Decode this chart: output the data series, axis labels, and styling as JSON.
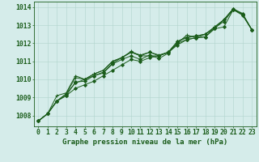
{
  "xlabel": "Graphe pression niveau de la mer (hPa)",
  "xlim": [
    -0.5,
    23.5
  ],
  "ylim": [
    1007.4,
    1014.3
  ],
  "yticks": [
    1008,
    1009,
    1010,
    1011,
    1012,
    1013,
    1014
  ],
  "xticks": [
    0,
    1,
    2,
    3,
    4,
    5,
    6,
    7,
    8,
    9,
    10,
    11,
    12,
    13,
    14,
    15,
    16,
    17,
    18,
    19,
    20,
    21,
    22,
    23
  ],
  "bg_color": "#d5ecea",
  "grid_color": "#b0d4cc",
  "line_color": "#1a5c1a",
  "lines": [
    {
      "y": [
        1007.7,
        1008.1,
        1008.8,
        1009.2,
        1009.8,
        1010.0,
        1010.2,
        1010.4,
        1010.9,
        1011.2,
        1011.5,
        1011.3,
        1011.5,
        1011.3,
        1011.5,
        1012.1,
        1012.3,
        1012.4,
        1012.5,
        1012.8,
        1013.3,
        1013.9,
        1013.65,
        1012.75
      ],
      "marker": "D",
      "markersize": 2.0,
      "lw": 0.7
    },
    {
      "y": [
        1007.7,
        1008.1,
        1008.8,
        1009.1,
        1009.5,
        1009.7,
        1009.9,
        1010.2,
        1010.5,
        1010.8,
        1011.1,
        1011.0,
        1011.2,
        1011.3,
        1011.5,
        1011.9,
        1012.2,
        1012.3,
        1012.35,
        1012.8,
        1012.9,
        1013.85,
        1013.6,
        1012.75
      ],
      "marker": "D",
      "markersize": 2.0,
      "lw": 0.7
    },
    {
      "y": [
        1007.7,
        1008.1,
        1009.1,
        1009.25,
        1010.2,
        1010.0,
        1010.3,
        1010.5,
        1011.0,
        1011.2,
        1011.55,
        1011.3,
        1011.3,
        1011.3,
        1011.5,
        1012.0,
        1012.45,
        1012.3,
        1012.5,
        1012.9,
        1013.3,
        1013.9,
        1013.6,
        1012.75
      ],
      "marker": "+",
      "markersize": 3.5,
      "lw": 0.7
    },
    {
      "y": [
        1007.7,
        1008.1,
        1008.8,
        1009.2,
        1010.1,
        1010.0,
        1010.3,
        1010.5,
        1011.0,
        1011.2,
        1011.5,
        1011.35,
        1011.5,
        1011.35,
        1011.5,
        1012.1,
        1012.35,
        1012.4,
        1012.5,
        1012.9,
        1013.3,
        1013.9,
        1013.6,
        1012.75
      ],
      "marker": "+",
      "markersize": 3.5,
      "lw": 0.7
    },
    {
      "y": [
        1007.7,
        1008.1,
        1008.8,
        1009.1,
        1009.85,
        1009.9,
        1010.2,
        1010.35,
        1010.85,
        1011.1,
        1011.3,
        1011.1,
        1011.35,
        1011.15,
        1011.45,
        1012.0,
        1012.2,
        1012.3,
        1012.35,
        1012.85,
        1013.2,
        1013.85,
        1013.55,
        1012.75
      ],
      "marker": "D",
      "markersize": 2.0,
      "lw": 0.7
    }
  ],
  "font_size": 6.5,
  "tick_font_size": 5.8,
  "fig_width": 3.2,
  "fig_height": 2.0,
  "dpi": 100
}
